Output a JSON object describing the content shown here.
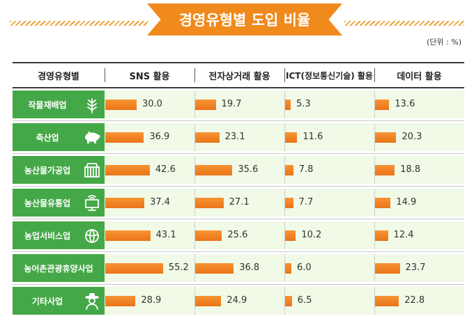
{
  "title": "경영유형별 도입 비율",
  "unit": "(단위 : %)",
  "colors": {
    "bar": "#f08a1c",
    "label_bg": "#45a848",
    "row_bg": "#f1f9e7"
  },
  "chart_data": {
    "type": "bar",
    "title": "경영유형별 도입 비율",
    "unit": "(단위 : %)",
    "row_header": "경영유형별",
    "categories": [
      "작물재배업",
      "축산업",
      "농산물가공업",
      "농산물유통업",
      "농업서비스업",
      "농어촌관광휴양사업",
      "기타사업"
    ],
    "category_icons": [
      "wheat-icon",
      "pig-icon",
      "crate-icon",
      "monitor-icon",
      "cabbage-icon",
      "hammock-icon",
      "farmer-icon"
    ],
    "series": [
      {
        "name": "SNS 활용",
        "values": [
          30.0,
          36.9,
          42.6,
          37.4,
          43.1,
          55.2,
          28.9
        ]
      },
      {
        "name": "전자상거래 활용",
        "values": [
          19.7,
          23.1,
          35.6,
          27.1,
          25.6,
          36.8,
          24.9
        ]
      },
      {
        "name": "ICT(정보통신기술) 활용",
        "values": [
          5.3,
          11.6,
          7.8,
          7.7,
          10.2,
          6.0,
          6.5
        ]
      },
      {
        "name": "데이터 활용",
        "values": [
          13.6,
          20.3,
          18.8,
          14.9,
          12.4,
          23.7,
          22.8
        ]
      }
    ],
    "value_labels": [
      [
        "30.0",
        "36.9",
        "42.6",
        "37.4",
        "43.1",
        "55.2",
        "28.9"
      ],
      [
        "19.7",
        "23.1",
        "35.6",
        "27.1",
        "25.6",
        "36.8",
        "24.9"
      ],
      [
        "5.3",
        "11.6",
        "7.8",
        "7.7",
        "10.2",
        "6.0",
        "6.5"
      ],
      [
        "13.6",
        "20.3",
        "18.8",
        "14.9",
        "12.4",
        "23.7",
        "22.8"
      ]
    ]
  }
}
